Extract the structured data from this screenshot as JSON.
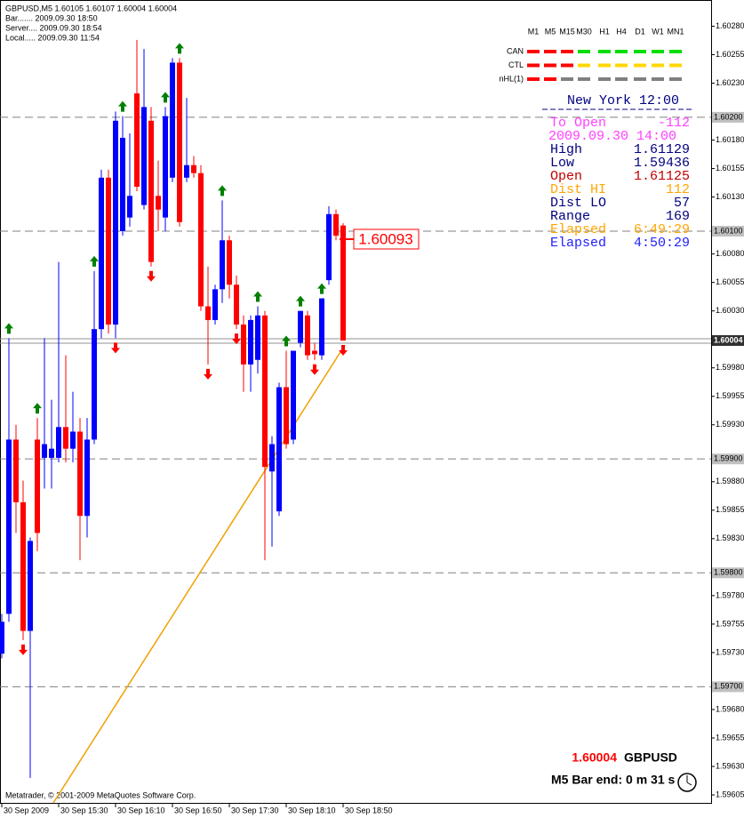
{
  "chart_data": {
    "type": "candlestick",
    "categories": [
      "30 Sep 2009",
      null,
      null,
      null,
      null,
      null,
      null,
      null,
      "30 Sep 15:30",
      null,
      null,
      null,
      null,
      null,
      null,
      null,
      "30 Sep 16:10",
      null,
      null,
      null,
      null,
      null,
      null,
      null,
      "30 Sep 16:50",
      null,
      null,
      null,
      null,
      null,
      null,
      null,
      "30 Sep 17:30",
      null,
      null,
      null,
      null,
      null,
      null,
      null,
      "30 Sep 18:10",
      null,
      null,
      null,
      null,
      null,
      null,
      null,
      "30 Sep 18:50"
    ],
    "open": [
      1.59729,
      1.59764,
      1.59917,
      1.59862,
      1.59749,
      1.59917,
      1.59901,
      1.59901,
      1.59901,
      1.59928,
      1.59909,
      1.59924,
      1.5985,
      1.59917,
      1.60014,
      1.60147,
      1.60018,
      1.601,
      1.60112,
      1.60221,
      1.60123,
      1.60197,
      1.60131,
      1.60112,
      1.60147,
      1.60248,
      1.60147,
      1.60158,
      1.60151,
      1.60034,
      1.60022,
      1.60049,
      1.60092,
      1.60053,
      1.60018,
      1.59983,
      1.59987,
      1.60026,
      1.59889,
      1.59854,
      1.59963,
      1.59917,
      1.60002,
      1.60026,
      1.59995,
      1.59991,
      1.60057,
      1.60115,
      1.60105
    ],
    "high": [
      1.59764,
      1.60006,
      1.5993,
      1.59881,
      1.59831,
      1.59936,
      1.60006,
      1.59952,
      1.60073,
      1.59991,
      1.59959,
      1.59936,
      1.59936,
      1.60065,
      1.60154,
      1.60154,
      1.60205,
      1.60201,
      1.60186,
      1.60268,
      1.6026,
      1.60209,
      1.60162,
      1.60209,
      1.60252,
      1.60252,
      1.60217,
      1.60166,
      1.60158,
      1.60069,
      1.60053,
      1.60127,
      1.60096,
      1.60061,
      1.60026,
      1.60026,
      1.60034,
      1.6003,
      1.5992,
      1.59967,
      1.59995,
      1.59995,
      1.6003,
      1.6003,
      1.60002,
      1.60041,
      1.60122,
      1.60119,
      1.60107
    ],
    "low": [
      1.59725,
      1.59757,
      1.59835,
      1.59741,
      1.5962,
      1.59819,
      1.59874,
      1.59874,
      1.59897,
      1.59897,
      1.59897,
      1.59811,
      1.59831,
      1.59913,
      1.60006,
      1.6001,
      1.60006,
      1.60096,
      1.60104,
      1.60135,
      1.60119,
      1.60069,
      1.601,
      1.601,
      1.60143,
      1.60104,
      1.60143,
      1.60147,
      1.6003,
      1.59983,
      1.60018,
      1.60037,
      1.60041,
      1.60014,
      1.59959,
      1.59959,
      1.59975,
      1.59811,
      1.59823,
      1.5985,
      1.59909,
      1.59913,
      1.59998,
      1.59987,
      1.59987,
      1.59987,
      1.60053,
      1.60092,
      1.60004
    ],
    "close": [
      1.59757,
      1.59917,
      1.59862,
      1.59749,
      1.59828,
      1.59835,
      1.59913,
      1.59909,
      1.59928,
      1.59909,
      1.59924,
      1.5985,
      1.59917,
      1.60014,
      1.60147,
      1.60018,
      1.60197,
      1.60182,
      1.60131,
      1.60139,
      1.60209,
      1.60073,
      1.60119,
      1.60201,
      1.60248,
      1.60108,
      1.60158,
      1.60151,
      1.60034,
      1.60022,
      1.60049,
      1.60092,
      1.60053,
      1.60018,
      1.59983,
      1.60022,
      1.60026,
      1.59893,
      1.59913,
      1.59963,
      1.59913,
      1.59995,
      1.6003,
      1.59991,
      1.59992,
      1.60041,
      1.60115,
      1.60096,
      1.60004
    ],
    "up_color": "#0000ff",
    "down_color": "#ff0000",
    "ylim": [
      1.59598,
      1.60303
    ],
    "yticks": [
      {
        "value": 1.6028,
        "label": "1.60280"
      },
      {
        "value": 1.60255,
        "label": "1.60255"
      },
      {
        "value": 1.6023,
        "label": "1.60230"
      },
      {
        "value": 1.6018,
        "label": "1.60180"
      },
      {
        "value": 1.60155,
        "label": "1.60155"
      },
      {
        "value": 1.6013,
        "label": "1.60130"
      },
      {
        "value": 1.6008,
        "label": "1.60080"
      },
      {
        "value": 1.60055,
        "label": "1.60055"
      },
      {
        "value": 1.6003,
        "label": "1.60030"
      },
      {
        "value": 1.5998,
        "label": "1.59980"
      },
      {
        "value": 1.59955,
        "label": "1.59955"
      },
      {
        "value": 1.5993,
        "label": "1.59930"
      },
      {
        "value": 1.5988,
        "label": "1.59880"
      },
      {
        "value": 1.59855,
        "label": "1.59855"
      },
      {
        "value": 1.5983,
        "label": "1.59830"
      },
      {
        "value": 1.5978,
        "label": "1.59780"
      },
      {
        "value": 1.59755,
        "label": "1.59755"
      },
      {
        "value": 1.5973,
        "label": "1.59730"
      },
      {
        "value": 1.5968,
        "label": "1.59680"
      },
      {
        "value": 1.59655,
        "label": "1.59655"
      },
      {
        "value": 1.5963,
        "label": "1.59630"
      },
      {
        "value": 1.59605,
        "label": "1.59605"
      }
    ],
    "levels": [
      {
        "value": 1.602,
        "label": "1.60200"
      },
      {
        "value": 1.601,
        "label": "1.60100"
      },
      {
        "value": 1.599,
        "label": "1.59900"
      },
      {
        "value": 1.598,
        "label": "1.59800"
      },
      {
        "value": 1.597,
        "label": "1.59700"
      }
    ],
    "last_price": {
      "value": 1.60004,
      "label": "1.60004"
    },
    "price_label": {
      "value": 1.60093,
      "label": "1.60093",
      "color": "#ff0000"
    },
    "trendline": {
      "color": "#f0a000",
      "x": [
        7.25,
        48.25
      ],
      "y": [
        1.59598,
        1.6
      ]
    },
    "signals": {
      "up": [
        1,
        5,
        13,
        17,
        23,
        25,
        31,
        36,
        40,
        42,
        45
      ],
      "down": [
        3,
        16,
        21,
        29,
        33,
        44,
        48
      ],
      "up_color": "#008000",
      "down_color": "#ff0000"
    }
  },
  "info": [
    "GBPUSD,M5  1.60105 1.60107 1.60004 1.60004",
    "Bar....... 2009.09.30 18:50",
    "Server.... 2009.09.30 18:54",
    "Local..... 2009.09.30 11:54"
  ],
  "panel": {
    "timeframes": [
      "M1",
      "M5",
      "M15",
      "M30",
      "H1",
      "H4",
      "D1",
      "W1",
      "MN1"
    ],
    "rows": [
      {
        "label": "CAN",
        "colors": [
          "#ff0000",
          "#ff0000",
          "#ff0000",
          "#00dd00",
          "#00dd00",
          "#00dd00",
          "#00dd00",
          "#00dd00",
          "#00dd00"
        ]
      },
      {
        "label": "CTL",
        "colors": [
          "#ff0000",
          "#ff0000",
          "#ff0000",
          "#ffd700",
          "#ffd700",
          "#ffd700",
          "#ffd700",
          "#ffd700",
          "#ffd700"
        ]
      },
      {
        "label": "nHL(1)",
        "colors": [
          "#ff0000",
          "#ff0000",
          "#808080",
          "#808080",
          "#808080",
          "#808080",
          "#808080",
          "#808080",
          "#808080"
        ]
      }
    ],
    "clock": "New York 12:00",
    "stats": [
      {
        "label": "To Open",
        "value": "-112",
        "color": "#ff40ff"
      },
      {
        "label": "2009.09.30 14:00",
        "color": "#ff40ff"
      },
      {
        "label": "High",
        "value": "1.61129",
        "color": "#000080"
      },
      {
        "label": "Low",
        "value": "1.59436",
        "color": "#000080"
      },
      {
        "label": "Open",
        "value": "1.61125",
        "color": "#c00000"
      },
      {
        "label": "Dist HI",
        "value": "112",
        "color": "#ffa500"
      },
      {
        "label": "Dist LO",
        "value": "57",
        "color": "#000080"
      },
      {
        "label": "Range",
        "value": "169",
        "color": "#000080"
      },
      {
        "label": "Elapsed",
        "value": "6:49:29",
        "color": "#ffa500"
      },
      {
        "label": "Elapsed",
        "value": "4:50:29",
        "color": "#2020ff"
      }
    ]
  },
  "footer": {
    "price": "1.60004",
    "symbol": "GBPUSD",
    "bar_end": "M5 Bar end: 0 m 31 s",
    "copyright": "Metatrader, © 2001-2009 MetaQuotes Software Corp."
  }
}
